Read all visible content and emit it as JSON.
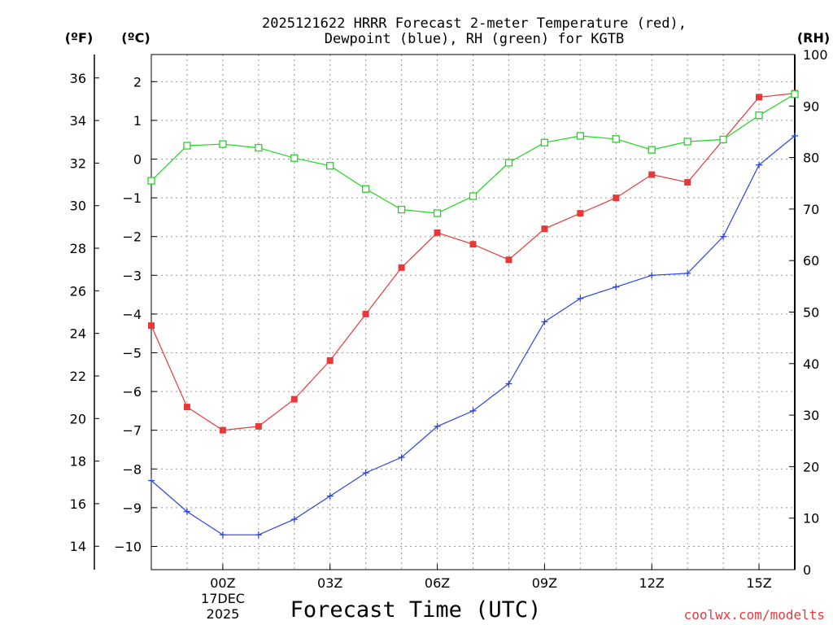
{
  "chart_data": {
    "type": "line",
    "title": [
      "2025121622 HRRR Forecast 2-meter Temperature (red),",
      "Dewpoint (blue), RH (green) for KGTB"
    ],
    "xlabel": "Forecast Time (UTC)",
    "credit": "coolwx.com/modelts",
    "x_hours": [
      -2,
      -1,
      0,
      1,
      2,
      3,
      4,
      5,
      6,
      7,
      8,
      9,
      10,
      11,
      12,
      13,
      14,
      15,
      16
    ],
    "xlim": [
      -2,
      16
    ],
    "x_ticks": [
      {
        "hour": 0,
        "label": "00Z"
      },
      {
        "hour": 3,
        "label": "03Z"
      },
      {
        "hour": 6,
        "label": "06Z"
      },
      {
        "hour": 9,
        "label": "09Z"
      },
      {
        "hour": 12,
        "label": "12Z"
      },
      {
        "hour": 15,
        "label": "15Z"
      }
    ],
    "date_label": [
      "17DEC",
      "2025"
    ],
    "axes": {
      "fahrenheit": {
        "unit_label": "(ºF)",
        "ylim": [
          12.9,
          37.1
        ],
        "ticks": [
          14,
          16,
          18,
          20,
          22,
          24,
          26,
          28,
          30,
          32,
          34,
          36
        ]
      },
      "celsius": {
        "unit_label": "(ºC)",
        "ylim": [
          -10.6,
          2.7
        ],
        "ticks": [
          -10,
          -9,
          -8,
          -7,
          -6,
          -5,
          -4,
          -3,
          -2,
          -1,
          0,
          1,
          2
        ]
      },
      "rh": {
        "unit_label": "(RH)",
        "ylim": [
          0,
          100
        ],
        "ticks": [
          0,
          10,
          20,
          30,
          40,
          50,
          60,
          70,
          80,
          90,
          100
        ]
      }
    },
    "series": [
      {
        "name": "2-meter Temperature",
        "units": "ºC",
        "axis": "celsius",
        "color": "#e8393a",
        "marker": "filled-square",
        "values": [
          -4.3,
          -6.4,
          -7.0,
          -6.9,
          -6.2,
          -5.2,
          -4.0,
          -2.8,
          -1.9,
          -2.2,
          -2.6,
          -1.8,
          -1.4,
          -1.0,
          -0.4,
          -0.6,
          0.5,
          1.6,
          1.7
        ]
      },
      {
        "name": "Dewpoint",
        "units": "ºC",
        "axis": "celsius",
        "color": "#2a44e8",
        "marker": "plus",
        "values": [
          -8.3,
          -9.1,
          -9.7,
          -9.7,
          -9.3,
          -8.7,
          -8.1,
          -7.7,
          -6.9,
          -6.5,
          -5.8,
          -4.2,
          -3.6,
          -3.3,
          -3.0,
          -2.95,
          -2.0,
          -0.15,
          0.6
        ]
      },
      {
        "name": "RH",
        "units": "%",
        "axis": "rh",
        "color": "#1ed81e",
        "marker": "open-square",
        "values": [
          75.5,
          82.3,
          82.6,
          81.9,
          79.9,
          78.4,
          73.9,
          69.9,
          69.2,
          72.5,
          79.0,
          82.9,
          84.2,
          83.6,
          81.5,
          83.1,
          83.5,
          88.2,
          92.3
        ]
      }
    ]
  }
}
